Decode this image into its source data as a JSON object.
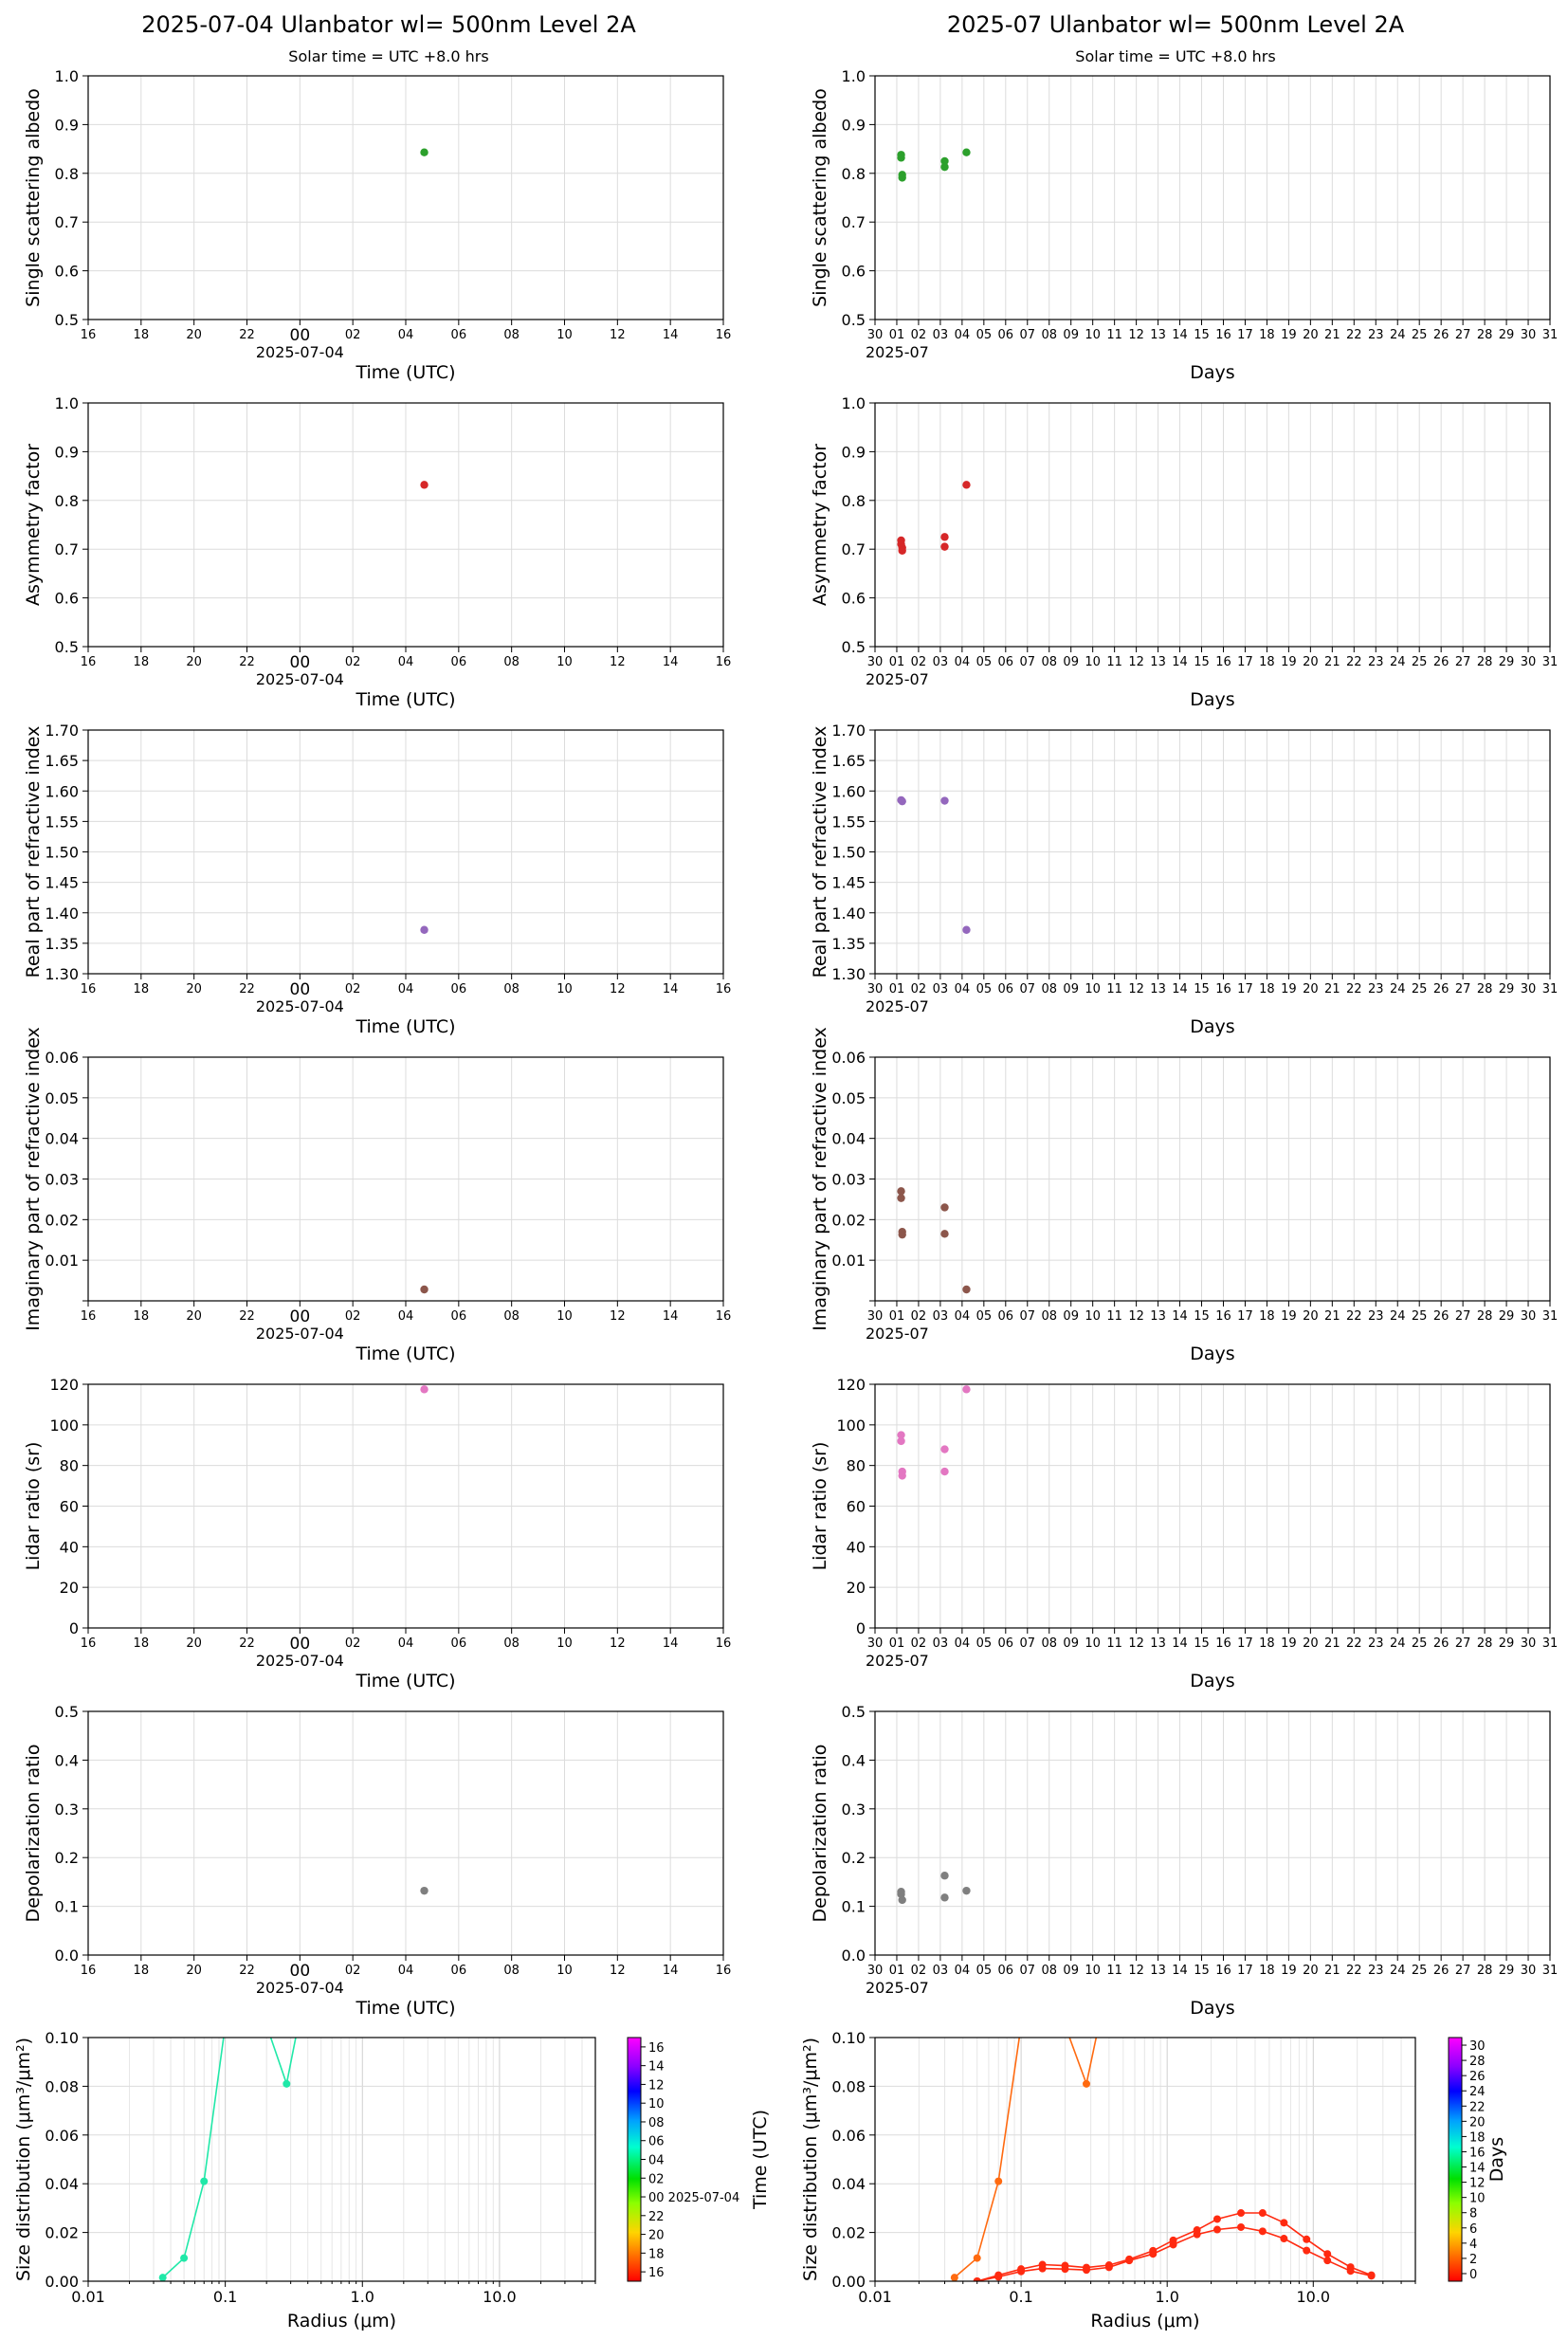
{
  "header": {
    "left_title": "2025-07-04  Ulanbator  wl= 500nm  Level 2A",
    "right_title": "2025-07  Ulanbator  wl= 500nm  Level 2A",
    "left_subtitle": "Solar time = UTC +8.0 hrs",
    "right_subtitle": "Solar time = UTC +8.0 hrs"
  },
  "axes_labels": {
    "time_x": "Time (UTC)",
    "days_x": "Days",
    "day_date": "2025-07-04",
    "month_date": "2025-07",
    "radius_x": "Radius (μm)",
    "size_y": "Size distribution (μm³/μm²)",
    "cbar_left_side": "Time (UTC)",
    "cbar_right_side": "Days",
    "cbar_left_date": "00 2025-07-04"
  },
  "ticks": {
    "time": [
      "16",
      "18",
      "20",
      "22",
      "00",
      "02",
      "04",
      "06",
      "08",
      "10",
      "12",
      "14",
      "16"
    ],
    "days": [
      "30",
      "01",
      "02",
      "03",
      "04",
      "05",
      "06",
      "07",
      "08",
      "09",
      "10",
      "11",
      "12",
      "13",
      "14",
      "15",
      "16",
      "17",
      "18",
      "19",
      "20",
      "21",
      "22",
      "23",
      "24",
      "25",
      "26",
      "27",
      "28",
      "29",
      "30",
      "31"
    ],
    "radius": [
      "0.01",
      "0.1",
      "1.0",
      "10.0"
    ],
    "cbar_left": [
      "16",
      "18",
      "20",
      "22",
      "00",
      "02",
      "04",
      "06",
      "08",
      "10",
      "12",
      "14",
      "16"
    ],
    "cbar_right": [
      "0",
      "2",
      "4",
      "6",
      "8",
      "10",
      "12",
      "14",
      "16",
      "18",
      "20",
      "22",
      "24",
      "26",
      "28",
      "30"
    ]
  },
  "chart_data": [
    {
      "id": "ssa-day",
      "type": "scatter",
      "ylabel": "Single scattering albedo",
      "ylim": [
        0.5,
        1.0
      ],
      "yticks": [
        "0.5",
        "0.6",
        "0.7",
        "0.8",
        "0.9",
        "1.0"
      ],
      "color": "#2ca02c",
      "points": [
        [
          4.7,
          0.843
        ]
      ]
    },
    {
      "id": "ssa-month",
      "type": "scatter",
      "ylabel": "Single scattering albedo",
      "ylim": [
        0.5,
        1.0
      ],
      "yticks": [
        "0.5",
        "0.6",
        "0.7",
        "0.8",
        "0.9",
        "1.0"
      ],
      "color": "#2ca02c",
      "points": [
        [
          1.2,
          0.832
        ],
        [
          1.2,
          0.838
        ],
        [
          1.25,
          0.797
        ],
        [
          1.25,
          0.791
        ],
        [
          3.2,
          0.825
        ],
        [
          3.2,
          0.813
        ],
        [
          4.2,
          0.843
        ]
      ]
    },
    {
      "id": "asym-day",
      "type": "scatter",
      "ylabel": "Asymmetry factor",
      "ylim": [
        0.5,
        1.0
      ],
      "yticks": [
        "0.5",
        "0.6",
        "0.7",
        "0.8",
        "0.9",
        "1.0"
      ],
      "color": "#d62728",
      "points": [
        [
          4.7,
          0.832
        ]
      ]
    },
    {
      "id": "asym-month",
      "type": "scatter",
      "ylabel": "Asymmetry factor",
      "ylim": [
        0.5,
        1.0
      ],
      "yticks": [
        "0.5",
        "0.6",
        "0.7",
        "0.8",
        "0.9",
        "1.0"
      ],
      "color": "#d62728",
      "points": [
        [
          1.2,
          0.718
        ],
        [
          1.2,
          0.71
        ],
        [
          1.25,
          0.703
        ],
        [
          1.25,
          0.697
        ],
        [
          3.2,
          0.725
        ],
        [
          3.2,
          0.705
        ],
        [
          4.2,
          0.832
        ]
      ]
    },
    {
      "id": "nreal-day",
      "type": "scatter",
      "ylabel": "Real part of refractive index",
      "ylim": [
        1.3,
        1.7
      ],
      "yticks": [
        "1.30",
        "1.35",
        "1.40",
        "1.45",
        "1.50",
        "1.55",
        "1.60",
        "1.65",
        "1.70"
      ],
      "color": "#9467bd",
      "points": [
        [
          4.7,
          1.372
        ]
      ]
    },
    {
      "id": "nreal-month",
      "type": "scatter",
      "ylabel": "Real part of refractive index",
      "ylim": [
        1.3,
        1.7
      ],
      "yticks": [
        "1.30",
        "1.35",
        "1.40",
        "1.45",
        "1.50",
        "1.55",
        "1.60",
        "1.65",
        "1.70"
      ],
      "color": "#9467bd",
      "points": [
        [
          1.2,
          1.585
        ],
        [
          1.25,
          1.583
        ],
        [
          3.2,
          1.584
        ],
        [
          4.2,
          1.372
        ]
      ]
    },
    {
      "id": "nimag-day",
      "type": "scatter",
      "ylabel": "Imaginary part of refractive index",
      "ylim": [
        0,
        0.06
      ],
      "yticks": [
        "",
        "0.01",
        "0.02",
        "0.03",
        "0.04",
        "0.05",
        "0.06"
      ],
      "color": "#8c564b",
      "points": [
        [
          4.7,
          0.0028
        ]
      ]
    },
    {
      "id": "nimag-month",
      "type": "scatter",
      "ylabel": "Imaginary part of refractive index",
      "ylim": [
        0,
        0.06
      ],
      "yticks": [
        "",
        "0.01",
        "0.02",
        "0.03",
        "0.04",
        "0.05",
        "0.06"
      ],
      "color": "#8c564b",
      "points": [
        [
          1.2,
          0.027
        ],
        [
          1.2,
          0.0253
        ],
        [
          1.25,
          0.017
        ],
        [
          1.25,
          0.0163
        ],
        [
          3.2,
          0.023
        ],
        [
          3.2,
          0.0165
        ],
        [
          4.2,
          0.0028
        ]
      ]
    },
    {
      "id": "lidar-day",
      "type": "scatter",
      "ylabel": "Lidar ratio (sr)",
      "ylim": [
        0,
        120
      ],
      "yticks": [
        "0",
        "20",
        "40",
        "60",
        "80",
        "100",
        "120"
      ],
      "color": "#e377c2",
      "points": [
        [
          4.7,
          117.5
        ]
      ]
    },
    {
      "id": "lidar-month",
      "type": "scatter",
      "ylabel": "Lidar ratio (sr)",
      "ylim": [
        0,
        120
      ],
      "yticks": [
        "0",
        "20",
        "40",
        "60",
        "80",
        "100",
        "120"
      ],
      "color": "#e377c2",
      "points": [
        [
          1.2,
          95
        ],
        [
          1.2,
          92
        ],
        [
          1.25,
          77
        ],
        [
          1.25,
          75
        ],
        [
          3.2,
          88
        ],
        [
          3.2,
          77
        ],
        [
          4.2,
          117.5
        ]
      ]
    },
    {
      "id": "depol-day",
      "type": "scatter",
      "ylabel": "Depolarization ratio",
      "ylim": [
        0,
        0.5
      ],
      "yticks": [
        "0.0",
        "0.1",
        "0.2",
        "0.3",
        "0.4",
        "0.5"
      ],
      "color": "#7f7f7f",
      "points": [
        [
          4.7,
          0.132
        ]
      ]
    },
    {
      "id": "depol-month",
      "type": "scatter",
      "ylabel": "Depolarization ratio",
      "ylim": [
        0,
        0.5
      ],
      "yticks": [
        "0.0",
        "0.1",
        "0.2",
        "0.3",
        "0.4",
        "0.5"
      ],
      "color": "#7f7f7f",
      "points": [
        [
          1.2,
          0.13
        ],
        [
          1.2,
          0.125
        ],
        [
          1.25,
          0.113
        ],
        [
          3.2,
          0.163
        ],
        [
          3.2,
          0.118
        ],
        [
          4.2,
          0.132
        ]
      ]
    },
    {
      "id": "psd-day",
      "type": "line",
      "xscale": "log",
      "xlim": [
        0.01,
        50
      ],
      "ylim": [
        0,
        0.1
      ],
      "yticks": [
        "0.00",
        "0.02",
        "0.04",
        "0.06",
        "0.08",
        "0.10"
      ],
      "series": [
        {
          "color": "#20e8a8",
          "points": [
            [
              0.035,
              0.0015
            ],
            [
              0.05,
              0.0095
            ],
            [
              0.07,
              0.041
            ],
            [
              0.1,
              0.105
            ],
            [
              0.2,
              0.105
            ],
            [
              0.28,
              0.081
            ],
            [
              0.34,
              0.105
            ]
          ]
        }
      ]
    },
    {
      "id": "psd-month",
      "type": "line",
      "xscale": "log",
      "xlim": [
        0.01,
        50
      ],
      "ylim": [
        0,
        0.1
      ],
      "yticks": [
        "0.00",
        "0.02",
        "0.04",
        "0.06",
        "0.08",
        "0.10"
      ],
      "series": [
        {
          "color": "#ff6a10",
          "points": [
            [
              0.035,
              0.0015
            ],
            [
              0.05,
              0.0095
            ],
            [
              0.07,
              0.041
            ],
            [
              0.1,
              0.105
            ],
            [
              0.2,
              0.105
            ],
            [
              0.28,
              0.081
            ],
            [
              0.34,
              0.105
            ]
          ]
        },
        {
          "color": "#ff2a10",
          "points": [
            [
              0.05,
              0.0
            ],
            [
              0.07,
              0.0025
            ],
            [
              0.1,
              0.005
            ],
            [
              0.14,
              0.0068
            ],
            [
              0.2,
              0.0064
            ],
            [
              0.28,
              0.0056
            ],
            [
              0.4,
              0.0066
            ],
            [
              0.55,
              0.009
            ],
            [
              0.8,
              0.0125
            ],
            [
              1.1,
              0.0168
            ],
            [
              1.6,
              0.021
            ],
            [
              2.2,
              0.0255
            ],
            [
              3.2,
              0.028
            ],
            [
              4.5,
              0.028
            ],
            [
              6.3,
              0.024
            ],
            [
              9,
              0.0172
            ],
            [
              12.5,
              0.0112
            ],
            [
              18,
              0.0058
            ],
            [
              25,
              0.0025
            ]
          ]
        },
        {
          "color": "#ff2a10",
          "points": [
            [
              0.05,
              0.0
            ],
            [
              0.07,
              0.0018
            ],
            [
              0.1,
              0.004
            ],
            [
              0.14,
              0.0052
            ],
            [
              0.2,
              0.005
            ],
            [
              0.28,
              0.0046
            ],
            [
              0.4,
              0.0057
            ],
            [
              0.55,
              0.0085
            ],
            [
              0.8,
              0.0112
            ],
            [
              1.1,
              0.015
            ],
            [
              1.6,
              0.0192
            ],
            [
              2.2,
              0.0212
            ],
            [
              3.2,
              0.0222
            ],
            [
              4.5,
              0.0205
            ],
            [
              6.3,
              0.0175
            ],
            [
              9,
              0.0126
            ],
            [
              12.5,
              0.0085
            ],
            [
              18,
              0.0042
            ],
            [
              25,
              0.0022
            ]
          ]
        }
      ]
    }
  ]
}
